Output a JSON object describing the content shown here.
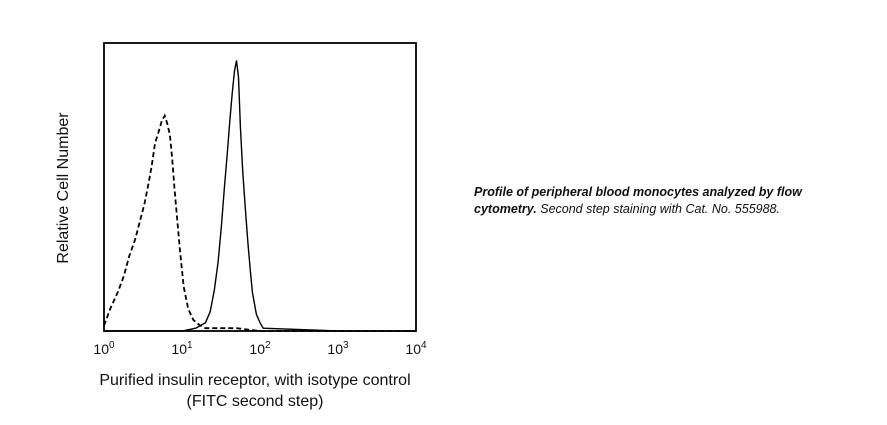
{
  "chart_data": {
    "type": "line",
    "x_scale": "log",
    "xlim": [
      1,
      10000
    ],
    "x_ticks": [
      {
        "value": 1,
        "base": "10",
        "exp": "0"
      },
      {
        "value": 10,
        "base": "10",
        "exp": "1"
      },
      {
        "value": 100,
        "base": "10",
        "exp": "2"
      },
      {
        "value": 1000,
        "base": "10",
        "exp": "3"
      },
      {
        "value": 10000,
        "base": "10",
        "exp": "4"
      }
    ],
    "ylim": [
      0,
      100
    ],
    "xlabel_line1": "Purified insulin receptor, with isotype control",
    "xlabel_line2": "(FITC second step)",
    "ylabel": "Relative Cell Number",
    "grid": false,
    "series": [
      {
        "style": "dashed",
        "color": "#000000",
        "x": [
          1,
          1.2,
          1.5,
          1.8,
          2.1,
          2.5,
          2.9,
          3.3,
          3.7,
          4.1,
          4.5,
          5.0,
          5.5,
          6.0,
          6.5,
          7.0,
          7.5,
          8.0,
          8.7,
          9.5,
          10.5,
          12,
          14,
          17,
          20,
          30,
          50,
          100,
          10000
        ],
        "y": [
          2,
          8,
          14,
          20,
          27,
          33,
          40,
          46,
          53,
          60,
          68,
          72,
          76,
          78,
          75,
          71,
          62,
          52,
          40,
          28,
          16,
          8,
          4,
          2,
          1,
          1,
          1,
          0,
          0
        ]
      },
      {
        "style": "solid",
        "color": "#000000",
        "x": [
          1,
          10,
          15,
          20,
          23,
          26,
          29,
          32,
          35,
          38,
          41,
          44,
          47,
          50,
          53,
          56,
          60,
          65,
          70,
          75,
          80,
          90,
          100,
          110,
          1000,
          10000
        ],
        "y": [
          0,
          0,
          1,
          3,
          7,
          15,
          25,
          38,
          52,
          64,
          76,
          86,
          94,
          98,
          92,
          74,
          58,
          44,
          32,
          22,
          14,
          6,
          3,
          1,
          0,
          0
        ]
      }
    ]
  },
  "caption": {
    "bold": "Profile of peripheral blood monocytes analyzed by flow cytometry.",
    "rest": " Second step staining with Cat. No. 555988."
  }
}
